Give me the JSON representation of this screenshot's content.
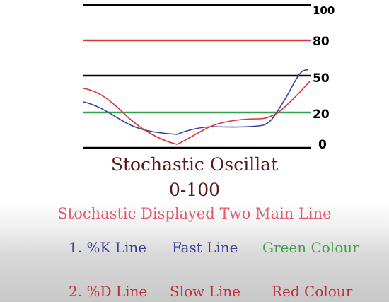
{
  "levels": [
    {
      "label": "100",
      "color": "#000000"
    },
    {
      "label": "80",
      "color": "#d43a3a"
    },
    {
      "label": "50",
      "color": "#000000"
    },
    {
      "label": "20",
      "color": "#2fa24a"
    },
    {
      "label": "0",
      "color": "#000000"
    }
  ],
  "title": "Stochastic Oscillat",
  "range": "0-100",
  "subtitle": "Stochastic Displayed Two Main Line",
  "lines": [
    {
      "number": "1. %K Line",
      "speed": "Fast Line",
      "colour": "Green Colour",
      "line_color": "#3a3f8f",
      "colour_color": "#3fa24a"
    },
    {
      "number": "2. %D Line",
      "speed": "Slow Line",
      "colour": "Red Colour",
      "line_color": "#c0303a",
      "colour_color": "#c0303a"
    }
  ],
  "curve_colors": {
    "k_line": "#3b3fa0",
    "d_line": "#e0303a"
  }
}
